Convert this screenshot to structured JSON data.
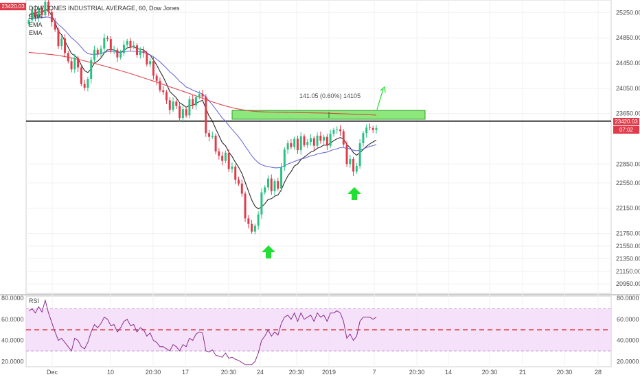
{
  "header": {
    "title": "DOW JONES INDUSTRIAL AVERAGE, 60, Dow Jones",
    "studies": [
      "EMA",
      "EMA",
      "EMA"
    ]
  },
  "price_tag": {
    "value": "23420.03",
    "countdown": "07:02"
  },
  "price_tag2": {
    "value": "23420.03",
    "countdown": "07:02"
  },
  "measure_label": "141.05 (0.60%) 14105",
  "rsi_label": "RSI",
  "colors": {
    "up": "#26c281",
    "down": "#e03b4a",
    "ema_fast": "#111111",
    "ema_mid": "#5b5bd6",
    "ema_slow": "#e0323b",
    "rsi": "#8b2f8b",
    "rsi_band": "#f2d9f7",
    "zone": "#8ce87a",
    "arrows": "#22e032",
    "hline": "#000000"
  },
  "chart_data": [
    {
      "type": "candlestick",
      "title": "DOW JONES INDUSTRIAL AVERAGE, 60, Dow Jones",
      "x_tick_labels": [
        "Dec",
        "10",
        "20:30",
        "17",
        "20:30",
        "24",
        "20:30",
        "2019",
        "7",
        "20:30",
        "14",
        "20:30",
        "21",
        "20:30",
        "28"
      ],
      "y_tick_labels": [
        "25250.00",
        "24850.00",
        "24450.00",
        "24050.00",
        "23650.00",
        "22850.00",
        "22550.00",
        "22150.00",
        "21750.00",
        "21550.00",
        "21350.00",
        "21150.00",
        "20950.00"
      ],
      "ylim": [
        20800,
        25450
      ],
      "horizontal_line": 23530,
      "target_zone": {
        "low": 23560,
        "high": 23700,
        "label": "141.05 (0.60%) 14105"
      },
      "series": [
        {
          "name": "Close",
          "values": [
            25130,
            25300,
            25170,
            25320,
            25210,
            25420,
            25260,
            25100,
            24980,
            24720,
            24840,
            24610,
            24480,
            24350,
            24530,
            24380,
            24120,
            24060,
            24200,
            24500,
            24660,
            24590,
            24680,
            24850,
            24830,
            24650,
            24660,
            24540,
            24610,
            24740,
            24800,
            24710,
            24730,
            24580,
            24650,
            24610,
            24430,
            24480,
            24250,
            24170,
            24020,
            23990,
            23860,
            23710,
            23840,
            23770,
            23580,
            23720,
            23620,
            23880,
            23780,
            23910,
            23960,
            23920,
            23340,
            23280,
            23300,
            23050,
            22980,
            22900,
            23030,
            22770,
            22810,
            22600,
            22540,
            22380,
            21990,
            21900,
            21780,
            21870,
            22050,
            22400,
            22480,
            22620,
            22420,
            22580,
            22460,
            22800,
            23080,
            23180,
            23120,
            23250,
            23070,
            23290,
            23150,
            23200,
            23260,
            23140,
            23300,
            23220,
            23280,
            23140,
            23330,
            23390,
            23400,
            23370,
            23160,
            22850,
            22930,
            22730,
            22820,
            23180,
            23340,
            23430,
            23420,
            23390,
            23420
          ]
        },
        {
          "name": "EMA",
          "values": [
            25200,
            25250,
            25230,
            25270,
            25250,
            25300,
            25280,
            25200,
            25100,
            24950,
            24900,
            24800,
            24700,
            24600,
            24570,
            24520,
            24420,
            24330,
            24300,
            24360,
            24450,
            24480,
            24530,
            24610,
            24660,
            24660,
            24660,
            24630,
            24620,
            24650,
            24690,
            24700,
            24710,
            24680,
            24670,
            24660,
            24610,
            24580,
            24500,
            24420,
            24320,
            24230,
            24120,
            24000,
            23950,
            23900,
            23820,
            23790,
            23750,
            23780,
            23780,
            23810,
            23840,
            23860,
            23730,
            23610,
            23530,
            23410,
            23300,
            23190,
            23140,
            23040,
            22970,
            22880,
            22800,
            22700,
            22560,
            22420,
            22280,
            22180,
            22140,
            22170,
            22220,
            22290,
            22300,
            22340,
            22360,
            22440,
            22560,
            22660,
            22730,
            22820,
            22850,
            22920,
            22960,
            23000,
            23040,
            23060,
            23100,
            23120,
            23150,
            23150,
            23180,
            23220,
            23250,
            23270,
            23250,
            23160,
            23110,
            23030,
            22990,
            23030,
            23080,
            23130,
            23170,
            23200,
            23230
          ]
        },
        {
          "name": "EMA",
          "values": [
            25150,
            25160,
            25160,
            25170,
            25170,
            25180,
            25180,
            25160,
            25120,
            25060,
            25020,
            24970,
            24910,
            24850,
            24810,
            24760,
            24700,
            24640,
            24600,
            24590,
            24590,
            24590,
            24600,
            24620,
            24630,
            24630,
            24630,
            24620,
            24620,
            24630,
            24640,
            24640,
            24640,
            24630,
            24630,
            24620,
            24600,
            24580,
            24550,
            24510,
            24470,
            24420,
            24370,
            24310,
            24270,
            24220,
            24160,
            24120,
            24070,
            24050,
            24020,
            24000,
            23980,
            23960,
            23910,
            23850,
            23790,
            23720,
            23650,
            23580,
            23530,
            23460,
            23400,
            23340,
            23280,
            23210,
            23130,
            23060,
            22980,
            22920,
            22870,
            22840,
            22820,
            22810,
            22800,
            22790,
            22790,
            22800,
            22820,
            22850,
            22870,
            22890,
            22910,
            22930,
            22940,
            22960,
            22980,
            22990,
            23010,
            23020,
            23030,
            23040,
            23060,
            23080,
            23090,
            23110,
            23110,
            23100,
            23090,
            23070,
            23060,
            23070,
            23090,
            23110,
            23130,
            23140,
            23160
          ]
        },
        {
          "name": "EMA",
          "values": [
            24620,
            24615,
            24610,
            24605,
            24600,
            24595,
            24590,
            24585,
            24578,
            24570,
            24562,
            24553,
            24543,
            24533,
            24522,
            24510,
            24498,
            24485,
            24472,
            24459,
            24446,
            24432,
            24418,
            24404,
            24390,
            24375,
            24360,
            24345,
            24330,
            24315,
            24299,
            24283,
            24267,
            24250,
            24233,
            24216,
            24199,
            24182,
            24165,
            24147,
            24129,
            24111,
            24093,
            24075,
            24057,
            24039,
            24021,
            24003,
            23985,
            23967,
            23949,
            23930,
            23911,
            23892,
            23873,
            23854,
            23836,
            23819,
            23802,
            23786,
            23771,
            23757,
            23744,
            23732,
            23721,
            23711,
            23703,
            23696,
            23690,
            23685,
            23681,
            23678,
            23676,
            23675,
            23674,
            23673,
            23672,
            23671,
            23670,
            23669,
            23668,
            23667,
            23666,
            23665,
            23664,
            23663,
            23662,
            23661,
            23660,
            23659,
            23658,
            23656,
            23654,
            23652,
            23650,
            23648,
            23646,
            23644,
            23642,
            23640,
            23638,
            23636,
            23634,
            23632,
            23630,
            23628,
            23626
          ]
        }
      ]
    },
    {
      "type": "line",
      "title": "RSI",
      "y_tick_labels": [
        "80.0000",
        "60.0000",
        "40.0000",
        "20.0000"
      ],
      "ylim": [
        15,
        82
      ],
      "band": [
        30,
        70
      ],
      "midline": 50,
      "series": [
        {
          "name": "RSI",
          "values": [
            68,
            70,
            66,
            72,
            67,
            78,
            66,
            57,
            48,
            40,
            42,
            38,
            34,
            30,
            42,
            40,
            34,
            32,
            38,
            48,
            55,
            52,
            56,
            62,
            60,
            54,
            55,
            48,
            52,
            58,
            60,
            54,
            55,
            48,
            52,
            50,
            44,
            47,
            40,
            38,
            34,
            34,
            32,
            30,
            36,
            34,
            30,
            36,
            34,
            42,
            40,
            46,
            48,
            47,
            30,
            29,
            31,
            26,
            25,
            24,
            28,
            23,
            24,
            22,
            21,
            19,
            17,
            17,
            17,
            20,
            28,
            40,
            44,
            50,
            44,
            48,
            45,
            56,
            62,
            64,
            60,
            66,
            58,
            66,
            60,
            62,
            64,
            58,
            66,
            62,
            64,
            58,
            66,
            66,
            68,
            66,
            58,
            42,
            46,
            40,
            44,
            58,
            62,
            62,
            62,
            60,
            62
          ]
        }
      ]
    }
  ]
}
